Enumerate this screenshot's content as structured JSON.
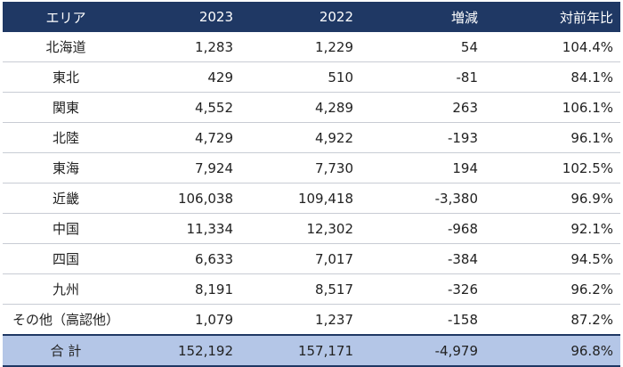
{
  "table": {
    "header": [
      "エリア",
      "2023",
      "2022",
      "増減",
      "対前年比"
    ],
    "rows": [
      [
        "北海道",
        "1,283",
        "1,229",
        "54",
        "104.4%"
      ],
      [
        "東北",
        "429",
        "510",
        "-81",
        "84.1%"
      ],
      [
        "関東",
        "4,552",
        "4,289",
        "263",
        "106.1%"
      ],
      [
        "北陸",
        "4,729",
        "4,922",
        "-193",
        "96.1%"
      ],
      [
        "東海",
        "7,924",
        "7,730",
        "194",
        "102.5%"
      ],
      [
        "近畿",
        "106,038",
        "109,418",
        "-3,380",
        "96.9%"
      ],
      [
        "中国",
        "11,334",
        "12,302",
        "-968",
        "92.1%"
      ],
      [
        "四国",
        "6,633",
        "7,017",
        "-384",
        "94.5%"
      ],
      [
        "九州",
        "8,191",
        "8,517",
        "-326",
        "96.2%"
      ],
      [
        "その他（高認他）",
        "1,079",
        "1,237",
        "-158",
        "87.2%"
      ]
    ],
    "total": [
      "合 計",
      "152,192",
      "157,171",
      "-4,979",
      "96.8%"
    ]
  }
}
